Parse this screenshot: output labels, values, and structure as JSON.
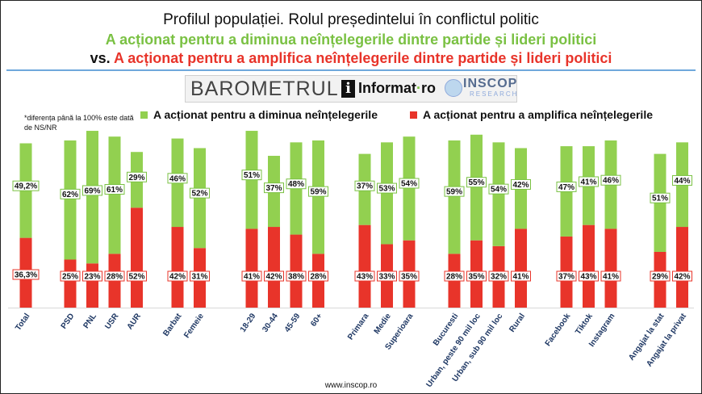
{
  "header": {
    "title": "Profilul populației. Rolul președintelui în conflictul politic",
    "subtitle_green": "A acționat pentru a diminua neînțelegerile dintre partide și lideri politici",
    "subtitle_vs": "vs.",
    "subtitle_red": "A acționat pentru a amplifica neînțelegerile dintre partide și lideri politici"
  },
  "logo": {
    "barometer": "BAROMETRUL",
    "i_letter": "i",
    "informat": "Informat",
    "ro": "ro",
    "inscop": "INSCOP",
    "research": "RESEARCH"
  },
  "note": "*diferența până la 100% este dată de NS/NR",
  "legend": {
    "green": "A acționat pentru a diminua neînțelegerile",
    "red": "A acționat pentru a amplifica neînțelegerile"
  },
  "footer": "www.inscop.ro",
  "colors": {
    "green": "#92d050",
    "red": "#e8342a",
    "green_label_border": "#7ac143",
    "red_label_border": "#e8342a"
  },
  "chart_data": {
    "type": "bar",
    "stacked": true,
    "categories": [
      "Total",
      "PSD",
      "PNL",
      "USR",
      "AUR",
      "Barbat",
      "Femeie",
      "18-29",
      "30-44",
      "45-59",
      "60+",
      "Primara",
      "Medie",
      "Superioara",
      "Bucuresti",
      "Urban, peste 90 mil loc",
      "Urban, sub 90 mil loc",
      "Rural",
      "Facebook",
      "Tiktok",
      "Instagram",
      "Angajat la stat",
      "Angajat la privat"
    ],
    "groups": [
      [
        0
      ],
      [
        1,
        2,
        3,
        4
      ],
      [
        5,
        6
      ],
      [
        7,
        8,
        9,
        10
      ],
      [
        11,
        12,
        13
      ],
      [
        14,
        15,
        16,
        17
      ],
      [
        18,
        19,
        20
      ],
      [
        21,
        22
      ]
    ],
    "series": [
      {
        "name": "A acționat pentru a amplifica neînțelegerile",
        "values": [
          36.3,
          25,
          23,
          28,
          52,
          42,
          31,
          41,
          42,
          38,
          28,
          43,
          33,
          35,
          28,
          35,
          32,
          41,
          37,
          43,
          41,
          29,
          42
        ],
        "labels": [
          "36,3%",
          "25%",
          "23%",
          "28%",
          "52%",
          "42%",
          "31%",
          "41%",
          "42%",
          "38%",
          "28%",
          "43%",
          "33%",
          "35%",
          "28%",
          "35%",
          "32%",
          "41%",
          "37%",
          "43%",
          "41%",
          "29%",
          "42%"
        ]
      },
      {
        "name": "A acționat pentru a diminua neînțelegerile",
        "values": [
          49.2,
          62,
          69,
          61,
          29,
          46,
          52,
          51,
          37,
          48,
          59,
          37,
          53,
          54,
          59,
          55,
          54,
          42,
          47,
          41,
          46,
          51,
          44
        ],
        "labels": [
          "49,2%",
          "62%",
          "69%",
          "61%",
          "29%",
          "46%",
          "52%",
          "51%",
          "37%",
          "48%",
          "59%",
          "37%",
          "53%",
          "54%",
          "59%",
          "55%",
          "54%",
          "42%",
          "47%",
          "41%",
          "46%",
          "51%",
          "44%"
        ]
      }
    ],
    "legend_position": "top",
    "grid": false
  }
}
